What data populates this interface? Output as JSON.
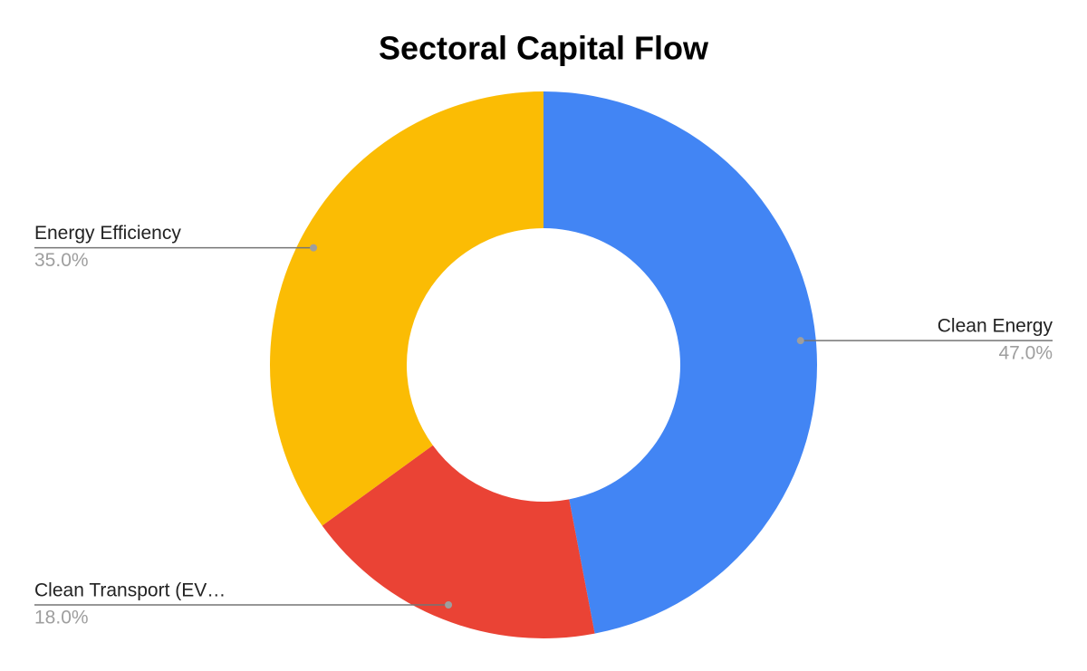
{
  "chart_data": {
    "type": "pie",
    "title": "Sectoral Capital Flow",
    "categories": [
      "Clean Energy",
      "Clean Transport (EV…",
      "Energy Efficiency"
    ],
    "values": [
      47,
      18,
      35
    ],
    "value_labels": [
      "47.0%",
      "18.0%",
      "35.0%"
    ],
    "colors": [
      "#4285f4",
      "#ea4335",
      "#fbbc04"
    ],
    "donut": true
  }
}
